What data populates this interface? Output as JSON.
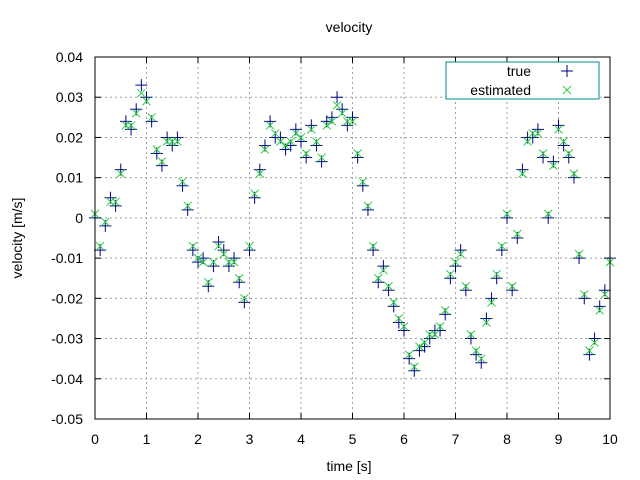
{
  "chart_data": {
    "type": "scatter",
    "title": "velocity",
    "xlabel": "time [s]",
    "ylabel": "velocity [m/s]",
    "xlim": [
      0,
      10
    ],
    "ylim": [
      -0.05,
      0.04
    ],
    "xticks": [
      0,
      1,
      2,
      3,
      4,
      5,
      6,
      7,
      8,
      9,
      10
    ],
    "yticks": [
      -0.05,
      -0.04,
      -0.03,
      -0.02,
      -0.01,
      0,
      0.01,
      0.02,
      0.03,
      0.04
    ],
    "ytick_labels": [
      "-0.05",
      "-0.04",
      "-0.03",
      "-0.02",
      "-0.01",
      "0",
      "0.01",
      "0.02",
      "0.03",
      "0.04"
    ],
    "grid": true,
    "legend_position": "top-right",
    "series": [
      {
        "name": "true",
        "marker": "plus",
        "color": "#00008b",
        "x": [
          0.0,
          0.1,
          0.2,
          0.3,
          0.4,
          0.5,
          0.6,
          0.7,
          0.8,
          0.9,
          1.0,
          1.1,
          1.2,
          1.3,
          1.4,
          1.5,
          1.6,
          1.7,
          1.8,
          1.9,
          2.0,
          2.1,
          2.2,
          2.3,
          2.4,
          2.5,
          2.6,
          2.7,
          2.8,
          2.9,
          3.0,
          3.1,
          3.2,
          3.3,
          3.4,
          3.5,
          3.6,
          3.7,
          3.8,
          3.9,
          4.0,
          4.1,
          4.2,
          4.3,
          4.4,
          4.5,
          4.6,
          4.7,
          4.8,
          4.9,
          5.0,
          5.1,
          5.2,
          5.3,
          5.4,
          5.5,
          5.6,
          5.7,
          5.8,
          5.9,
          6.0,
          6.1,
          6.2,
          6.3,
          6.4,
          6.5,
          6.6,
          6.7,
          6.8,
          6.9,
          7.0,
          7.1,
          7.2,
          7.3,
          7.4,
          7.5,
          7.6,
          7.7,
          7.8,
          7.9,
          8.0,
          8.1,
          8.2,
          8.3,
          8.4,
          8.5,
          8.6,
          8.7,
          8.8,
          8.9,
          9.0,
          9.1,
          9.2,
          9.3,
          9.4,
          9.5,
          9.6,
          9.7,
          9.8,
          9.9,
          10.0
        ],
        "y": [
          0.0,
          -0.008,
          -0.002,
          0.005,
          0.003,
          0.012,
          0.024,
          0.022,
          0.027,
          0.033,
          0.03,
          0.024,
          0.016,
          0.013,
          0.02,
          0.018,
          0.02,
          0.008,
          0.002,
          -0.008,
          -0.011,
          -0.01,
          -0.017,
          -0.012,
          -0.006,
          -0.008,
          -0.012,
          -0.01,
          -0.016,
          -0.021,
          -0.008,
          0.005,
          0.012,
          0.018,
          0.024,
          0.02,
          0.02,
          0.017,
          0.018,
          0.022,
          0.019,
          0.015,
          0.023,
          0.018,
          0.014,
          0.024,
          0.025,
          0.03,
          0.027,
          0.023,
          0.025,
          0.015,
          0.008,
          0.002,
          -0.008,
          -0.016,
          -0.012,
          -0.018,
          -0.022,
          -0.026,
          -0.028,
          -0.035,
          -0.038,
          -0.033,
          -0.032,
          -0.03,
          -0.028,
          -0.028,
          -0.024,
          -0.015,
          -0.012,
          -0.008,
          -0.018,
          -0.03,
          -0.034,
          -0.036,
          -0.025,
          -0.02,
          -0.015,
          -0.008,
          0.0,
          -0.018,
          -0.005,
          0.012,
          0.02,
          0.02,
          0.022,
          0.015,
          0.0,
          0.014,
          0.023,
          0.018,
          0.015,
          0.01,
          -0.01,
          -0.02,
          -0.034,
          -0.03,
          -0.022,
          -0.018,
          -0.01
        ]
      },
      {
        "name": "estimated",
        "marker": "cross",
        "color": "#2ecc40",
        "x": [
          0.0,
          0.1,
          0.2,
          0.3,
          0.4,
          0.5,
          0.6,
          0.7,
          0.8,
          0.9,
          1.0,
          1.1,
          1.2,
          1.3,
          1.4,
          1.5,
          1.6,
          1.7,
          1.8,
          1.9,
          2.0,
          2.1,
          2.2,
          2.3,
          2.4,
          2.5,
          2.6,
          2.7,
          2.8,
          2.9,
          3.0,
          3.1,
          3.2,
          3.3,
          3.4,
          3.5,
          3.6,
          3.7,
          3.8,
          3.9,
          4.0,
          4.1,
          4.2,
          4.3,
          4.4,
          4.5,
          4.6,
          4.7,
          4.8,
          4.9,
          5.0,
          5.1,
          5.2,
          5.3,
          5.4,
          5.5,
          5.6,
          5.7,
          5.8,
          5.9,
          6.0,
          6.1,
          6.2,
          6.3,
          6.4,
          6.5,
          6.6,
          6.7,
          6.8,
          6.9,
          7.0,
          7.1,
          7.2,
          7.3,
          7.4,
          7.5,
          7.6,
          7.7,
          7.8,
          7.9,
          8.0,
          8.1,
          8.2,
          8.3,
          8.4,
          8.5,
          8.6,
          8.7,
          8.8,
          8.9,
          9.0,
          9.1,
          9.2,
          9.3,
          9.4,
          9.5,
          9.6,
          9.7,
          9.8,
          9.9,
          10.0
        ],
        "y": [
          0.001,
          -0.007,
          -0.001,
          0.004,
          0.004,
          0.011,
          0.023,
          0.023,
          0.026,
          0.031,
          0.029,
          0.025,
          0.017,
          0.014,
          0.019,
          0.019,
          0.019,
          0.009,
          0.003,
          -0.007,
          -0.01,
          -0.011,
          -0.016,
          -0.011,
          -0.007,
          -0.009,
          -0.011,
          -0.011,
          -0.015,
          -0.02,
          -0.007,
          0.006,
          0.011,
          0.017,
          0.023,
          0.021,
          0.019,
          0.018,
          0.019,
          0.021,
          0.02,
          0.016,
          0.022,
          0.019,
          0.015,
          0.023,
          0.024,
          0.028,
          0.026,
          0.024,
          0.024,
          0.016,
          0.009,
          0.003,
          -0.007,
          -0.015,
          -0.013,
          -0.017,
          -0.021,
          -0.025,
          -0.027,
          -0.034,
          -0.037,
          -0.032,
          -0.031,
          -0.029,
          -0.029,
          -0.027,
          -0.023,
          -0.014,
          -0.011,
          -0.009,
          -0.017,
          -0.029,
          -0.033,
          -0.035,
          -0.026,
          -0.021,
          -0.014,
          -0.007,
          0.001,
          -0.017,
          -0.004,
          0.011,
          0.019,
          0.021,
          0.021,
          0.016,
          0.001,
          0.013,
          0.022,
          0.019,
          0.016,
          0.011,
          -0.009,
          -0.019,
          -0.033,
          -0.031,
          -0.023,
          -0.019,
          -0.011
        ]
      }
    ]
  }
}
